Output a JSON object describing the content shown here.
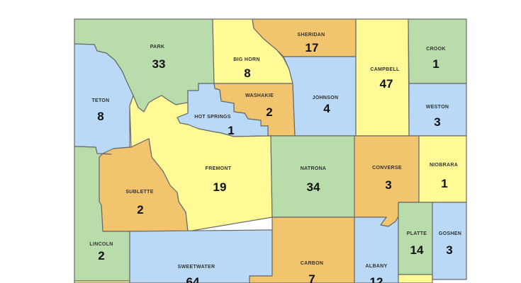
{
  "colors": {
    "green": "#b9dcab",
    "blue": "#b9d9f7",
    "yellow": "#fffa96",
    "orange": "#f2c46e",
    "border": "#6a6a6a"
  },
  "counties": [
    {
      "name": "PARK",
      "value": "33",
      "color": "green"
    },
    {
      "name": "TETON",
      "value": "8",
      "color": "blue"
    },
    {
      "name": "BIG HORN",
      "value": "8",
      "color": "yellow"
    },
    {
      "name": "SHERIDAN",
      "value": "17",
      "color": "orange"
    },
    {
      "name": "WASHAKIE",
      "value": "2",
      "color": "orange"
    },
    {
      "name": "HOT SPRINGS",
      "value": "1",
      "color": "blue"
    },
    {
      "name": "JOHNSON",
      "value": "4",
      "color": "blue"
    },
    {
      "name": "CAMPBELL",
      "value": "47",
      "color": "yellow"
    },
    {
      "name": "CROOK",
      "value": "1",
      "color": "green"
    },
    {
      "name": "WESTON",
      "value": "3",
      "color": "blue"
    },
    {
      "name": "FREMONT",
      "value": "19",
      "color": "yellow"
    },
    {
      "name": "SUBLETTE",
      "value": "2",
      "color": "orange"
    },
    {
      "name": "LINCOLN",
      "value": "2",
      "color": "green"
    },
    {
      "name": "NATRONA",
      "value": "34",
      "color": "green"
    },
    {
      "name": "CONVERSE",
      "value": "3",
      "color": "orange"
    },
    {
      "name": "NIOBRARA",
      "value": "1",
      "color": "yellow"
    },
    {
      "name": "SWEETWATER",
      "value": "64",
      "color": "blue"
    },
    {
      "name": "CARBON",
      "value": "7",
      "color": "orange"
    },
    {
      "name": "ALBANY",
      "value": "12",
      "color": "blue"
    },
    {
      "name": "PLATTE",
      "value": "14",
      "color": "green"
    },
    {
      "name": "GOSHEN",
      "value": "3",
      "color": "blue"
    },
    {
      "name": "",
      "value": "",
      "color": "yellow"
    },
    {
      "name": "",
      "value": "",
      "color": "yellow"
    }
  ]
}
